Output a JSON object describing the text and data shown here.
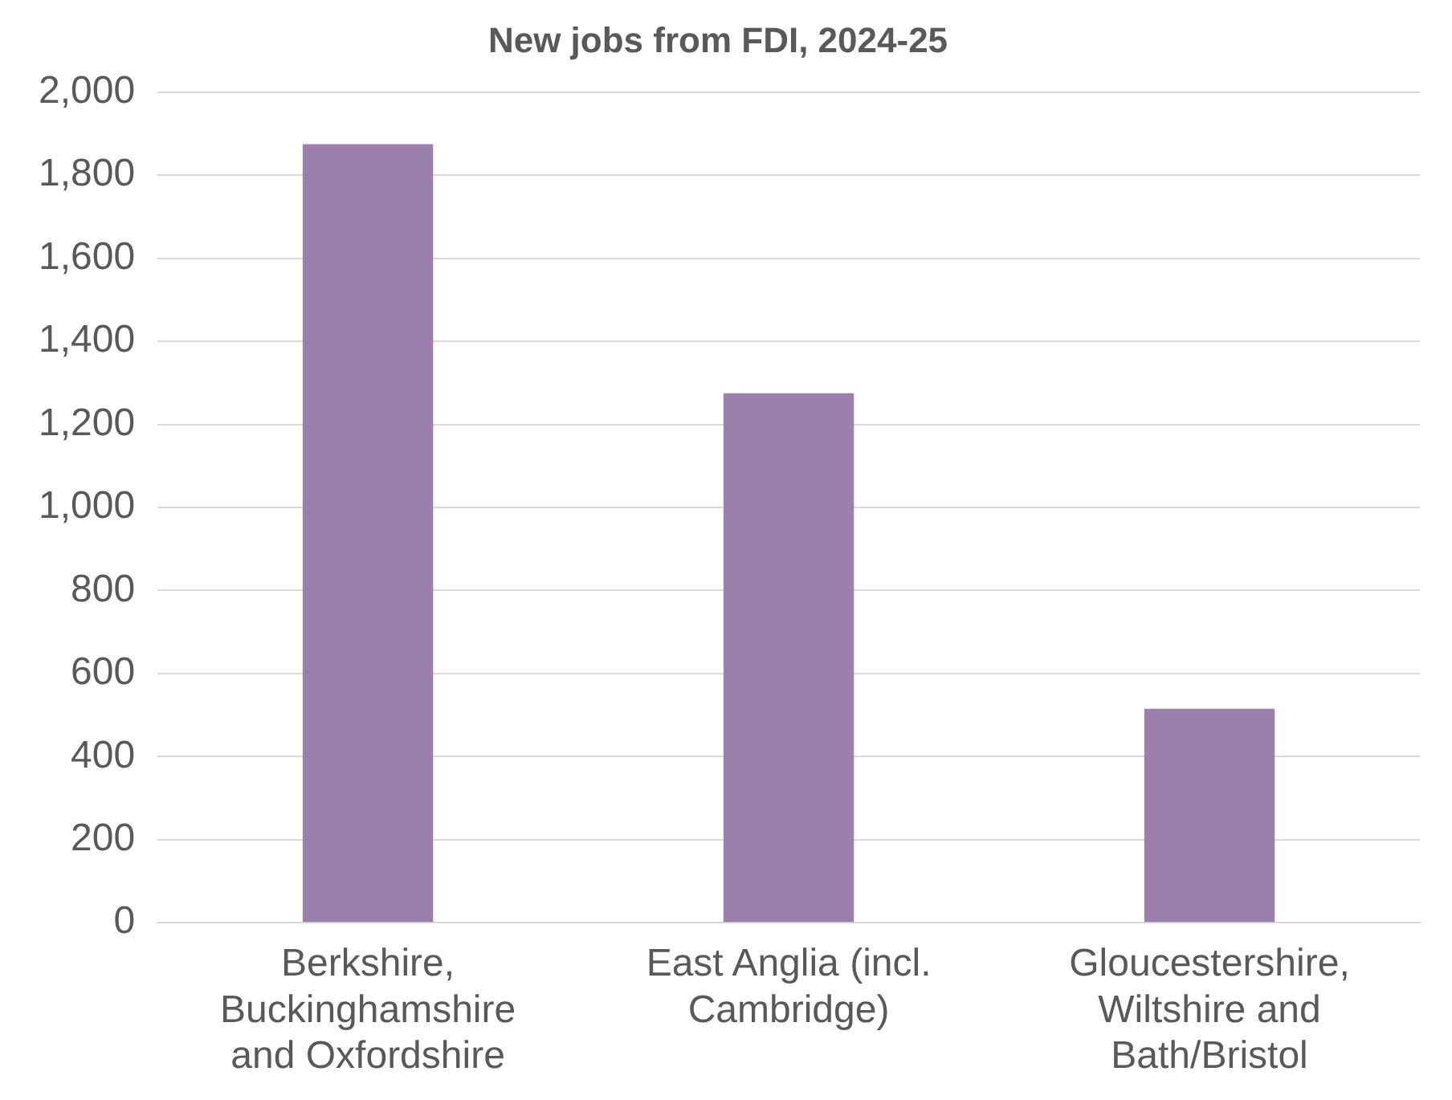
{
  "chart_data": {
    "type": "bar",
    "title": "New jobs from FDI, 2024-25",
    "categories": [
      "Berkshire, Buckinghamshire and Oxfordshire",
      "East Anglia (incl. Cambridge)",
      "Gloucestershire, Wiltshire and Bath/Bristol"
    ],
    "values": [
      1875,
      1275,
      515
    ],
    "color": "#9b80ad",
    "ylim": [
      0,
      2000
    ],
    "yticks": [
      0,
      200,
      400,
      600,
      800,
      {
        "value": 1000,
        "label": "1,000"
      },
      {
        "value": 1200,
        "label": "1,200"
      },
      {
        "value": 1400,
        "label": "1,400"
      },
      {
        "value": 1600,
        "label": "1,600"
      },
      {
        "value": 1800,
        "label": "1,800"
      },
      {
        "value": 2000,
        "label": "2,000"
      }
    ],
    "grid": "y",
    "legend": false
  }
}
